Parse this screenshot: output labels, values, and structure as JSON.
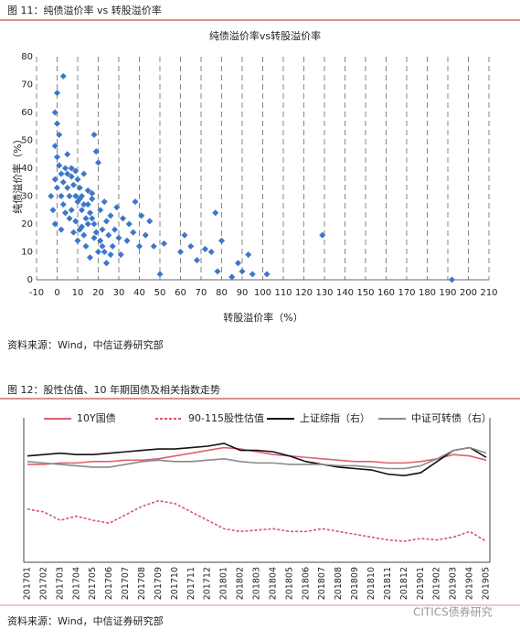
{
  "figures": [
    {
      "caption": "图 11：纯债溢价率 vs 转股溢价率",
      "source": "资料来源：Wind，中信证券研究部"
    },
    {
      "caption": "图 12：股性估值、10 年期国债及相关指数走势",
      "source": "资料来源：Wind，中信证券研究部"
    }
  ],
  "watermark": "CITICS债券研究",
  "chart_data": [
    {
      "type": "scatter",
      "title": "纯债溢价率vs转股溢价率",
      "x_label": "转股溢价率（%）",
      "y_label": "纯债溢价率（%）",
      "color": "#3c78c8",
      "grid": true,
      "xlim": [
        -10,
        210
      ],
      "xticks": [
        -10,
        0,
        10,
        20,
        30,
        40,
        50,
        60,
        70,
        80,
        90,
        100,
        110,
        120,
        130,
        140,
        150,
        160,
        170,
        180,
        190,
        200,
        210
      ],
      "ylim": [
        0,
        80
      ],
      "yticks": [
        0,
        10,
        20,
        30,
        40,
        50,
        60,
        70,
        80
      ],
      "x": [
        0,
        -1,
        0,
        1,
        -1,
        0,
        1,
        2,
        3,
        -1,
        0,
        2,
        3,
        4,
        5,
        5,
        6,
        7,
        8,
        9,
        10,
        10,
        11,
        12,
        12,
        13,
        14,
        15,
        16,
        17,
        18,
        18,
        19,
        20,
        21,
        22,
        23,
        24,
        25,
        26,
        27,
        28,
        29,
        30,
        31,
        32,
        34,
        35,
        37,
        38,
        40,
        41,
        43,
        45,
        47,
        50,
        52,
        60,
        62,
        65,
        68,
        72,
        75,
        77,
        78,
        80,
        85,
        88,
        90,
        93,
        95,
        102,
        129,
        192,
        -3,
        -2,
        -1,
        2,
        4,
        6,
        8,
        10,
        12,
        14,
        16,
        18,
        20,
        22,
        24,
        26,
        3,
        7,
        9,
        11,
        13,
        15,
        17,
        19,
        21,
        23,
        5,
        7,
        9,
        11,
        13,
        15,
        17
      ],
      "y": [
        67,
        60,
        56,
        52,
        48,
        44,
        41,
        38,
        73,
        36,
        33,
        30,
        35,
        40,
        38,
        33,
        30,
        37,
        34,
        30,
        28,
        36,
        33,
        25,
        30,
        38,
        22,
        27,
        24,
        31,
        52,
        20,
        46,
        42,
        25,
        18,
        28,
        21,
        16,
        23,
        12,
        18,
        26,
        15,
        9,
        22,
        14,
        20,
        17,
        28,
        12,
        23,
        16,
        21,
        12,
        2,
        13,
        10,
        16,
        12,
        7,
        11,
        10,
        24,
        3,
        14,
        1,
        6,
        3,
        9,
        2,
        2,
        16,
        0,
        30,
        25,
        20,
        18,
        24,
        22,
        17,
        14,
        19,
        12,
        8,
        15,
        10,
        12,
        6,
        9,
        27,
        25,
        21,
        18,
        16,
        20,
        22,
        17,
        14,
        10,
        45,
        40,
        39,
        29,
        27,
        32,
        29
      ]
    },
    {
      "type": "line",
      "ylim": [
        0,
        100
      ],
      "y2lim": [
        0,
        100
      ],
      "categories": [
        "201701",
        "201702",
        "201703",
        "201704",
        "201705",
        "201706",
        "201707",
        "201708",
        "201709",
        "201710",
        "201711",
        "201712",
        "201801",
        "201802",
        "201803",
        "201804",
        "201805",
        "201806",
        "201807",
        "201808",
        "201809",
        "201810",
        "201811",
        "201812",
        "201901",
        "201902",
        "201903",
        "201904",
        "201905"
      ],
      "series": [
        {
          "name": "10Y国债",
          "color": "#e06070",
          "dash": false,
          "values": [
            70,
            70,
            71,
            71,
            72,
            72,
            73,
            73,
            74,
            76,
            78,
            80,
            82,
            81,
            79,
            77,
            76,
            75,
            74,
            73,
            72,
            72,
            71,
            71,
            72,
            74,
            77,
            76,
            73
          ]
        },
        {
          "name": "90-115股性估值",
          "color": "#d9536a",
          "dash": true,
          "values": [
            38,
            36,
            30,
            33,
            30,
            28,
            34,
            40,
            44,
            42,
            36,
            30,
            24,
            22,
            23,
            24,
            22,
            22,
            24,
            22,
            20,
            18,
            16,
            15,
            17,
            16,
            18,
            22,
            15
          ]
        },
        {
          "name": "上证综指（右）",
          "color": "#111111",
          "dash": false,
          "axis": "y2",
          "values": [
            76,
            77,
            78,
            77,
            77,
            78,
            79,
            80,
            81,
            81,
            82,
            83,
            85,
            80,
            80,
            79,
            76,
            72,
            70,
            68,
            67,
            66,
            63,
            62,
            64,
            72,
            80,
            82,
            75
          ]
        },
        {
          "name": "中证可转债（右）",
          "color": "#8a8a8a",
          "dash": false,
          "axis": "y2",
          "values": [
            72,
            71,
            70,
            69,
            68,
            68,
            70,
            72,
            73,
            72,
            72,
            73,
            74,
            72,
            71,
            71,
            70,
            70,
            70,
            69,
            69,
            68,
            67,
            67,
            69,
            74,
            80,
            82,
            78
          ]
        }
      ]
    }
  ]
}
